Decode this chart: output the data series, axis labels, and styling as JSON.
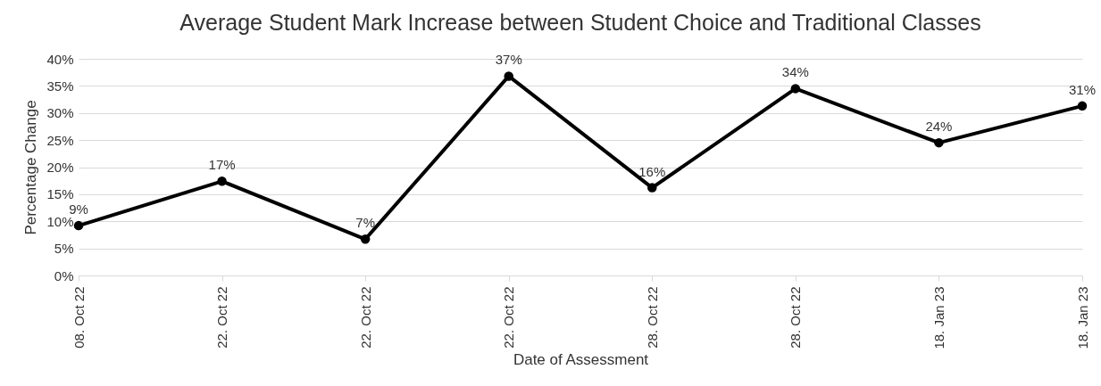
{
  "chart_data": {
    "type": "line",
    "title": "Average Student Mark Increase between Student Choice and Traditional Classes",
    "xlabel": "Date of Assessment",
    "ylabel": "Percentage Change",
    "categories": [
      "08. Oct 22",
      "22. Oct 22",
      "22. Oct 22",
      "22. Oct 22",
      "28. Oct 22",
      "28. Oct 22",
      "18. Jan 23",
      "18. Jan 23"
    ],
    "series": [
      {
        "color": "#000000",
        "values": [
          9.2,
          17.4,
          6.7,
          36.8,
          16.2,
          34.5,
          24.5,
          31.3
        ],
        "value_labels": [
          "9%",
          "17%",
          "7%",
          "37%",
          "16%",
          "34%",
          "24%",
          "31%"
        ]
      }
    ],
    "ylim": [
      0,
      40
    ],
    "yticks": [
      {
        "value": 0,
        "label": "0%"
      },
      {
        "value": 5,
        "label": "5%"
      },
      {
        "value": 10,
        "label": "10%"
      },
      {
        "value": 15,
        "label": "15%"
      },
      {
        "value": 20,
        "label": "20%"
      },
      {
        "value": 25,
        "label": "25%"
      },
      {
        "value": 30,
        "label": "30%"
      },
      {
        "value": 35,
        "label": "35%"
      },
      {
        "value": 40,
        "label": "40%"
      }
    ],
    "grid": "y",
    "marker": "circle",
    "line_style": "solid"
  }
}
